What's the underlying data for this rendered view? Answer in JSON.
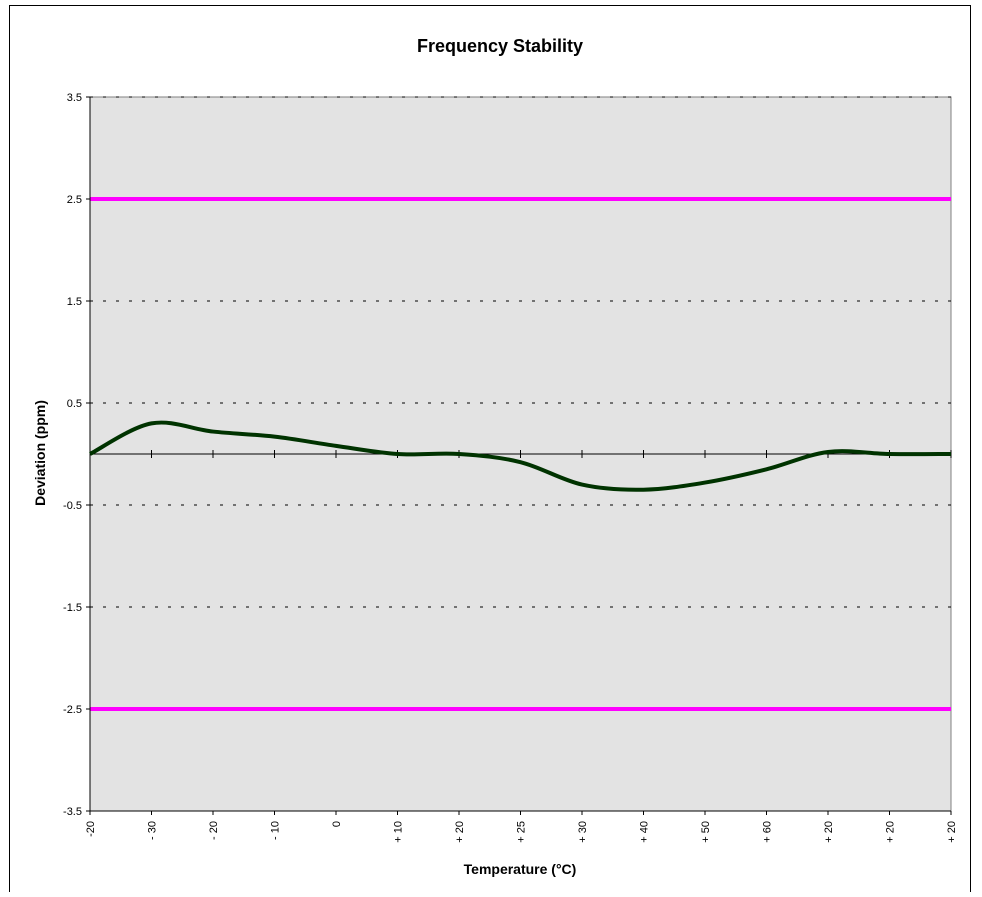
{
  "chart_data": {
    "type": "line",
    "title": "Frequency Stability",
    "xlabel": "Temperature (°C)",
    "ylabel": "Deviation (ppm)",
    "ylim": [
      -3.5,
      3.5
    ],
    "yticks": [
      3.5,
      2.5,
      1.5,
      0.5,
      -0.5,
      -1.5,
      -2.5,
      -3.5
    ],
    "grid": true,
    "legend": "none",
    "categories": [
      "-20",
      "- 30",
      "- 20",
      "- 10",
      "0",
      "+ 10",
      "+ 20",
      "+ 25",
      "+ 30",
      "+ 40",
      "+ 50",
      "+ 60",
      "+ 20",
      "+ 20",
      "+ 20"
    ],
    "series": [
      {
        "values": [
          0.0,
          0.3,
          0.22,
          0.17,
          0.08,
          0.0,
          0.0,
          -0.08,
          -0.3,
          -0.35,
          -0.28,
          -0.15,
          0.02,
          0.0,
          0.0
        ],
        "color": "#003300"
      }
    ],
    "limit_lines": [
      {
        "value": 2.5,
        "color": "#ff00ff"
      },
      {
        "value": -2.5,
        "color": "#ff00ff"
      }
    ],
    "colors": {
      "plot_background": "#e3e3e3",
      "grid": "#000000",
      "zero_line": "#000000"
    }
  }
}
